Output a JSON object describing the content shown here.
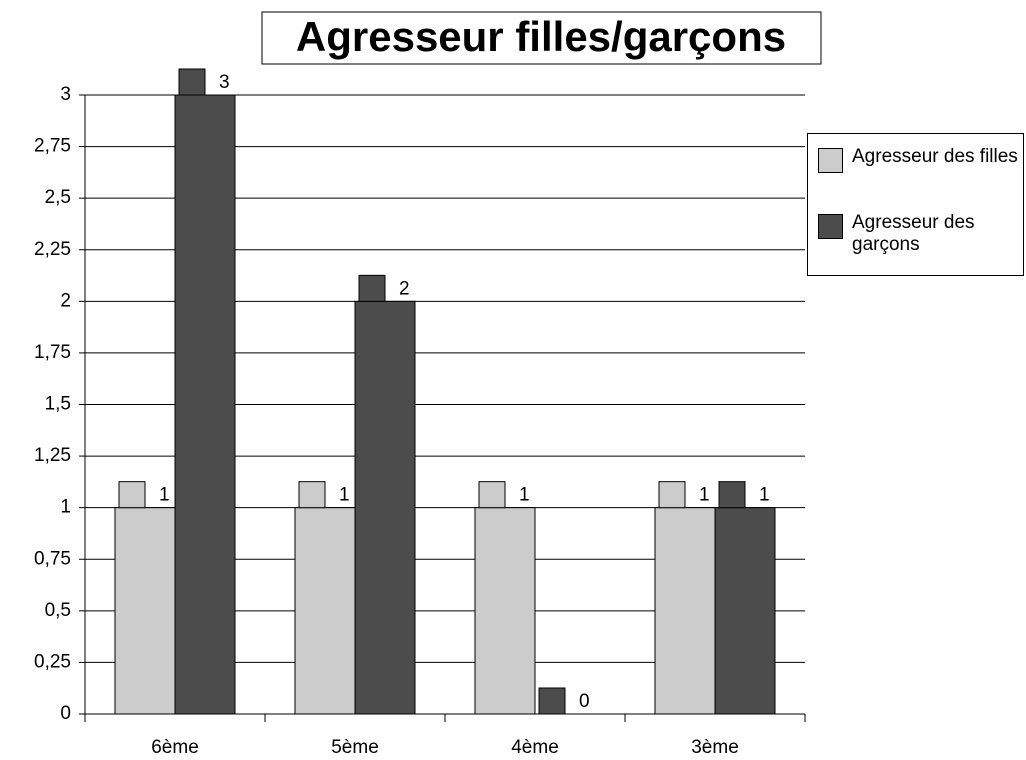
{
  "chart_data": {
    "type": "bar",
    "title": "Agresseur filles/garçons",
    "categories": [
      "6ème",
      "5ème",
      "4ème",
      "3ème"
    ],
    "series": [
      {
        "name": "Agresseur des filles",
        "color": "#cccccc",
        "values": [
          1,
          1,
          1,
          1
        ]
      },
      {
        "name": "Agresseur des garçons",
        "color": "#4c4c4c",
        "values": [
          3,
          2,
          0,
          1
        ]
      }
    ],
    "ylim": [
      0,
      3
    ],
    "yticks": [
      0,
      {
        "value": 0.25,
        "label": "0,25"
      },
      {
        "value": 0.5,
        "label": "0,5"
      },
      {
        "value": 0.75,
        "label": "0,75"
      },
      1,
      {
        "value": 1.25,
        "label": "1,25"
      },
      {
        "value": 1.5,
        "label": "1,5"
      },
      {
        "value": 1.75,
        "label": "1,75"
      },
      2,
      {
        "value": 2.25,
        "label": "2,25"
      },
      {
        "value": 2.5,
        "label": "2,5"
      },
      {
        "value": 2.75,
        "label": "2,75"
      },
      3
    ],
    "grid": true,
    "legend": "right"
  }
}
